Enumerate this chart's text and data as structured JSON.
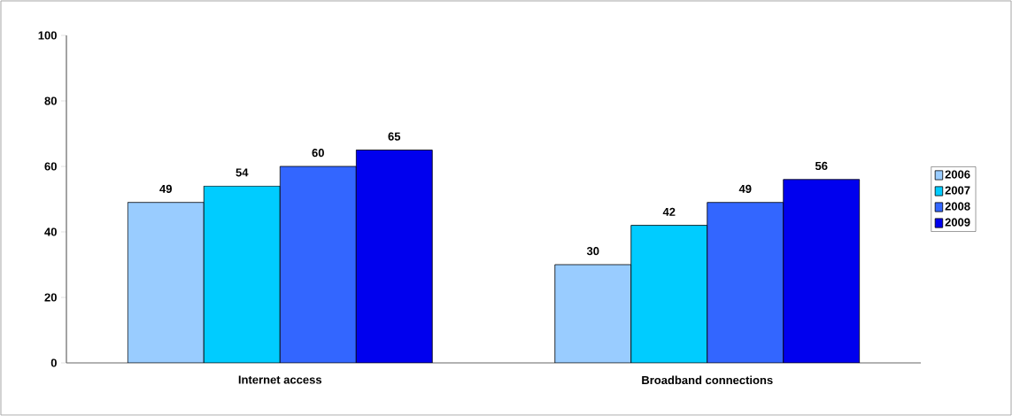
{
  "chart_data": {
    "type": "bar",
    "categories": [
      "Internet access",
      "Broadband connections"
    ],
    "series": [
      {
        "name": "2006",
        "color": "#99ccff",
        "values": [
          49,
          30
        ]
      },
      {
        "name": "2007",
        "color": "#00ccff",
        "values": [
          54,
          42
        ]
      },
      {
        "name": "2008",
        "color": "#3366ff",
        "values": [
          60,
          49
        ]
      },
      {
        "name": "2009",
        "color": "#0000ee",
        "values": [
          65,
          56
        ]
      }
    ],
    "ylim": [
      0,
      100
    ],
    "yticks": [
      0,
      20,
      40,
      60,
      80,
      100
    ],
    "data_labels": true,
    "legend": "right",
    "grid": false
  }
}
